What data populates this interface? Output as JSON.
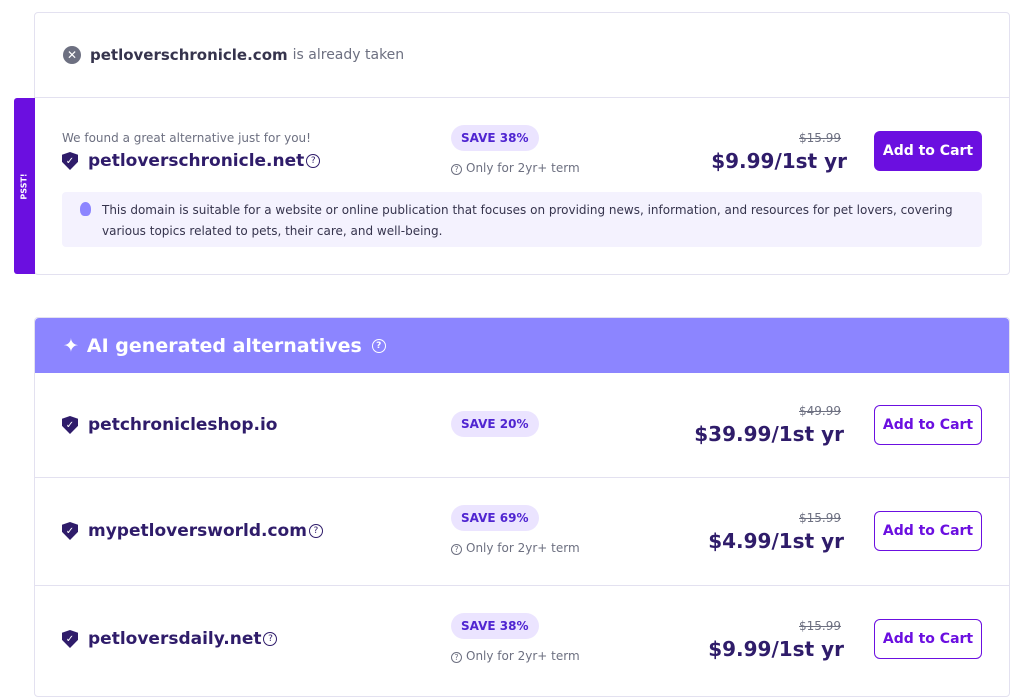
{
  "taken": {
    "domain": "petloverschronicle.com",
    "suffix": "is already taken"
  },
  "psst": "PSST!",
  "featured": {
    "intro": "We found a great alternative just for you!",
    "domain": "petloverschronicle.net",
    "badge": "SAVE 38%",
    "term": "Only for 2yr+ term",
    "old_price": "$15.99",
    "price": "$9.99/1st yr",
    "button": "Add to Cart",
    "description": "This domain is suitable for a website or online publication that focuses on providing news, information, and resources for pet lovers, covering various topics related to pets, their care, and well-being."
  },
  "ai": {
    "title": "AI generated alternatives",
    "items": [
      {
        "domain": "petchronicleshop.io",
        "badge": "SAVE 20%",
        "old_price": "$49.99",
        "price": "$39.99/1st yr",
        "button": "Add to Cart"
      },
      {
        "domain": "mypetloversworld.com",
        "badge": "SAVE 69%",
        "term": "Only for 2yr+ term",
        "old_price": "$15.99",
        "price": "$4.99/1st yr",
        "button": "Add to Cart"
      },
      {
        "domain": "petloversdaily.net",
        "badge": "SAVE 38%",
        "term": "Only for 2yr+ term",
        "old_price": "$15.99",
        "price": "$9.99/1st yr",
        "button": "Add to Cart"
      }
    ]
  },
  "colors": {
    "primary": "#6b0fe0",
    "ai_header": "#8c85ff",
    "text": "#2f1c6a"
  }
}
